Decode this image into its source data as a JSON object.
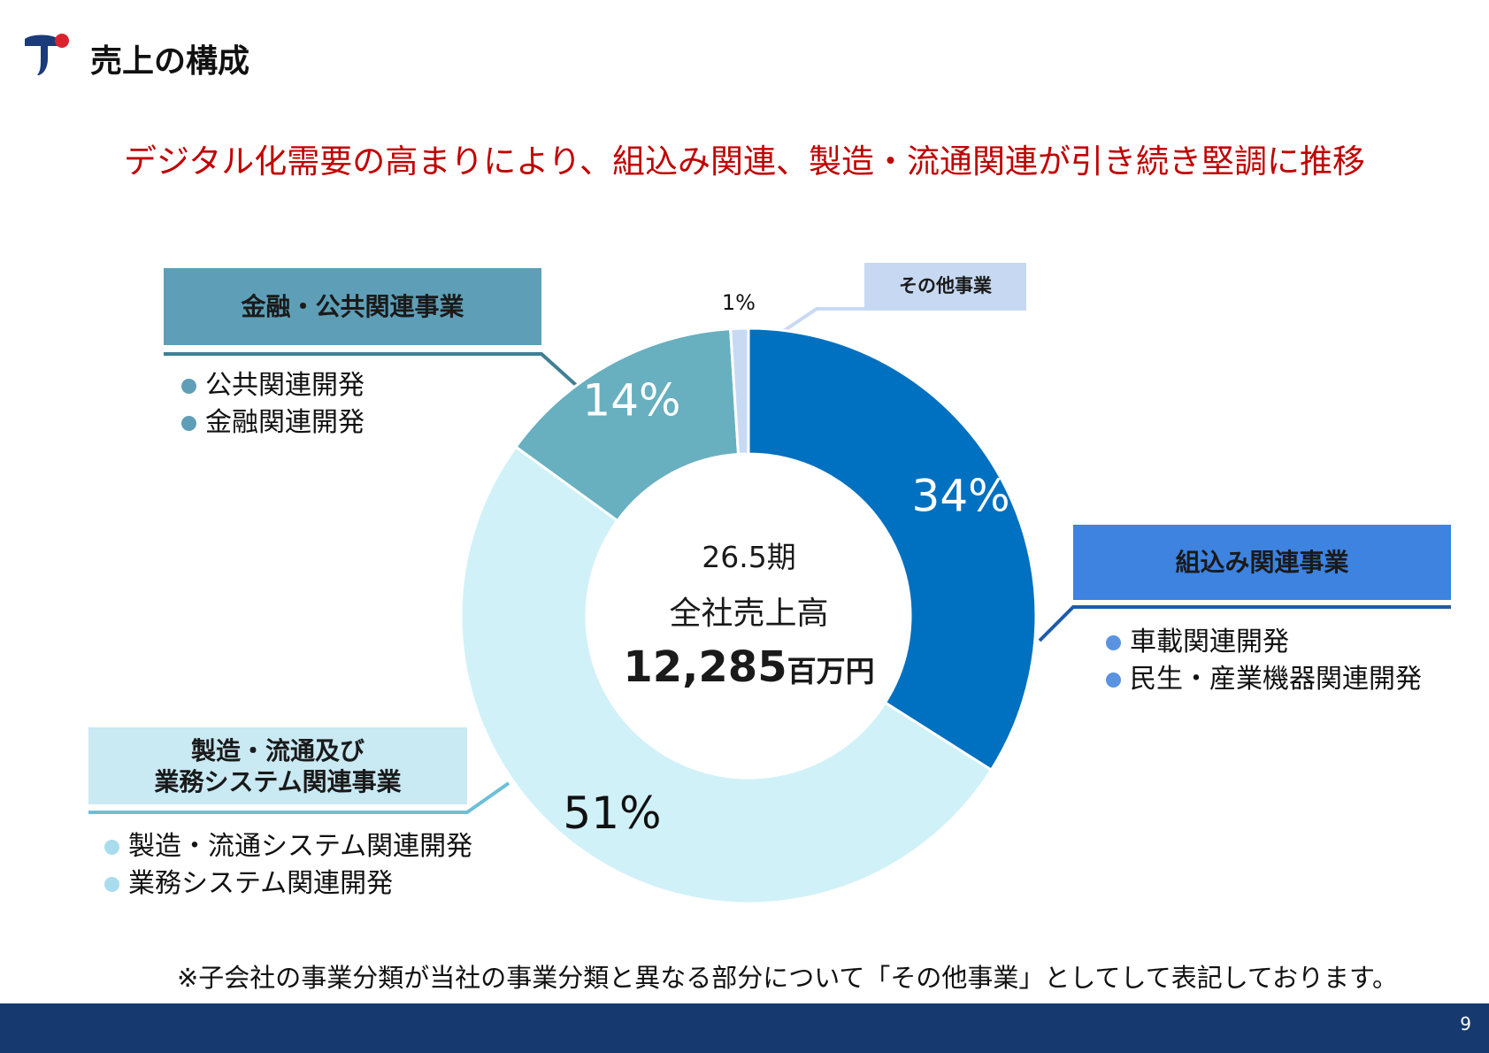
{
  "header": {
    "title": "売上の構成",
    "subtitle": "デジタル化需要の高まりにより、組込み関連、製造・流通関連が引き続き堅調に推移"
  },
  "center": {
    "period": "26.5期",
    "label": "全社売上高",
    "total_value": "12,285",
    "total_unit": "百万円"
  },
  "categories": {
    "finance": {
      "name": "金融・公共関連事業",
      "items": [
        "公共関連開発",
        "金融関連開発"
      ]
    },
    "embedded": {
      "name": "組込み関連事業",
      "items": [
        "車載関連開発",
        "民生・産業機器関連開発"
      ]
    },
    "mfg": {
      "name_line1": "製造・流通及び",
      "name_line2": "業務システム関連事業",
      "items": [
        "製造・流通システム関連開発",
        "業務システム関連開発"
      ]
    },
    "other": {
      "name": "その他事業"
    }
  },
  "footnote": "※子会社の事業分類が当社の事業分類と異なる部分について「その他事業」としてして表記しております。",
  "page_number": "9",
  "colors": {
    "subtitle": "#c00000",
    "embedded": "#0070c0",
    "mfg": "#d1f1f8",
    "finance": "#68afbf",
    "other": "#c8daf3",
    "footer": "#163a70"
  },
  "chart_data": {
    "type": "pie",
    "variant": "donut",
    "categories": [
      "組込み関連事業",
      "製造・流通及び業務システム関連事業",
      "金融・公共関連事業",
      "その他事業"
    ],
    "values": [
      34,
      51,
      14,
      1
    ],
    "labels": [
      "34%",
      "51%",
      "14%",
      "1%"
    ],
    "unit": "%",
    "start": "12 o'clock",
    "direction": "clockwise"
  }
}
